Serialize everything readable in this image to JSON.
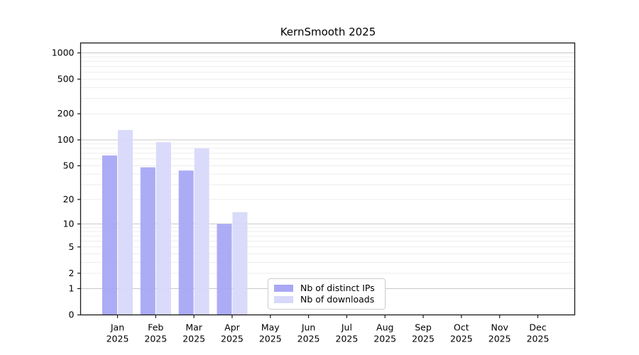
{
  "chart_data": {
    "type": "bar",
    "title": "KernSmooth 2025",
    "categories": [
      "Jan",
      "Feb",
      "Mar",
      "Apr",
      "May",
      "Jun",
      "Jul",
      "Aug",
      "Sep",
      "Oct",
      "Nov",
      "Dec"
    ],
    "x_year_label": "2025",
    "series": [
      {
        "name": "Nb of distinct IPs",
        "color": "#a8a8f5",
        "values": [
          66,
          48,
          44,
          10,
          0,
          0,
          0,
          0,
          0,
          0,
          0,
          0
        ]
      },
      {
        "name": "Nb of downloads",
        "color": "#d8d8fa",
        "values": [
          130,
          94,
          80,
          14,
          0,
          0,
          0,
          0,
          0,
          0,
          0,
          0
        ]
      }
    ],
    "xlabel": "",
    "ylabel": "",
    "yscale": "log1p",
    "yticks": [
      0,
      1,
      2,
      5,
      10,
      20,
      50,
      100,
      200,
      500,
      1000
    ],
    "ylim": [
      0,
      1300
    ],
    "grid": true,
    "legend_position": "lower-center-inside",
    "colors": {
      "major_gridline": "#c8c8c8",
      "minor_gridline": "#ededed",
      "axis_spine": "#1a1a1a",
      "tick_label": "#000000",
      "background": "#ffffff"
    }
  }
}
